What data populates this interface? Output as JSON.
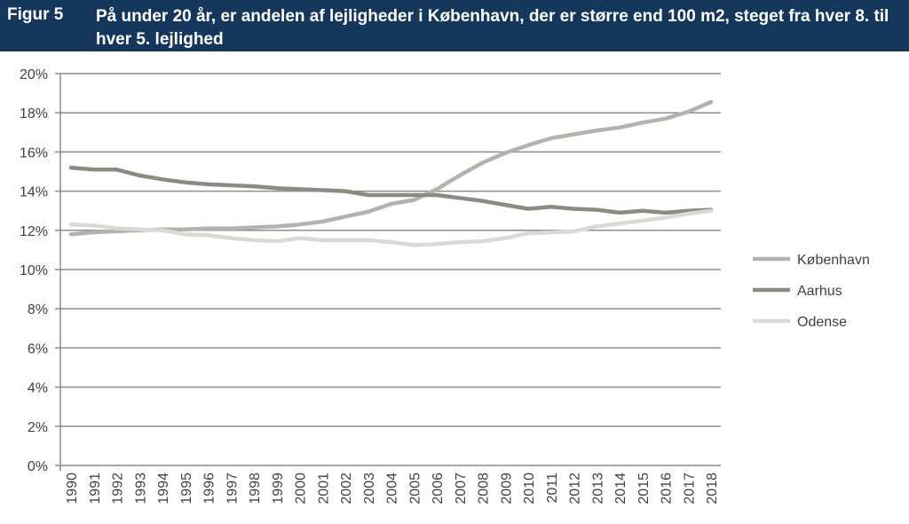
{
  "header": {
    "figure_label": "Figur 5",
    "title": "På under 20 år, er andelen af lejligheder i København, der er større end 100 m2, steget fra hver 8. til hver 5. lejlighed"
  },
  "chart_data": {
    "type": "line",
    "title": "På under 20 år, er andelen af lejligheder i København, der er større end 100 m2, steget fra hver 8. til hver 5. lejlighed",
    "xlabel": "",
    "ylabel": "",
    "ylim": [
      0,
      20
    ],
    "yticks": [
      0,
      2,
      4,
      6,
      8,
      10,
      12,
      14,
      16,
      18,
      20
    ],
    "ytick_suffix": "%",
    "grid": true,
    "legend_position": "right",
    "x": [
      "1990",
      "1991",
      "1992",
      "1993",
      "1994",
      "1995",
      "1996",
      "1997",
      "1998",
      "1999",
      "2000",
      "2001",
      "2002",
      "2003",
      "2004",
      "2005",
      "2006",
      "2007",
      "2008",
      "2009",
      "2010",
      "2011",
      "2012",
      "2013",
      "2014",
      "2015",
      "2016",
      "2017",
      "2018"
    ],
    "series": [
      {
        "name": "København",
        "color": "#b3b3ad",
        "values": [
          11.8,
          11.9,
          11.95,
          12.0,
          12.05,
          12.05,
          12.1,
          12.1,
          12.15,
          12.2,
          12.3,
          12.45,
          12.7,
          12.95,
          13.35,
          13.55,
          14.1,
          14.8,
          15.45,
          15.95,
          16.35,
          16.7,
          16.9,
          17.1,
          17.25,
          17.5,
          17.7,
          18.05,
          18.55
        ]
      },
      {
        "name": "Aarhus",
        "color": "#8a8c84",
        "values": [
          15.2,
          15.1,
          15.1,
          14.8,
          14.6,
          14.45,
          14.35,
          14.3,
          14.25,
          14.15,
          14.1,
          14.05,
          14.0,
          13.8,
          13.8,
          13.8,
          13.8,
          13.65,
          13.5,
          13.3,
          13.1,
          13.2,
          13.1,
          13.05,
          12.9,
          13.0,
          12.9,
          13.0,
          13.05
        ]
      },
      {
        "name": "Odense",
        "color": "#d9d9d5",
        "values": [
          12.3,
          12.25,
          12.1,
          12.05,
          12.0,
          11.8,
          11.75,
          11.6,
          11.5,
          11.45,
          11.6,
          11.5,
          11.5,
          11.5,
          11.4,
          11.25,
          11.3,
          11.4,
          11.45,
          11.6,
          11.85,
          11.9,
          11.95,
          12.2,
          12.35,
          12.5,
          12.65,
          12.85,
          13.0
        ]
      }
    ]
  }
}
